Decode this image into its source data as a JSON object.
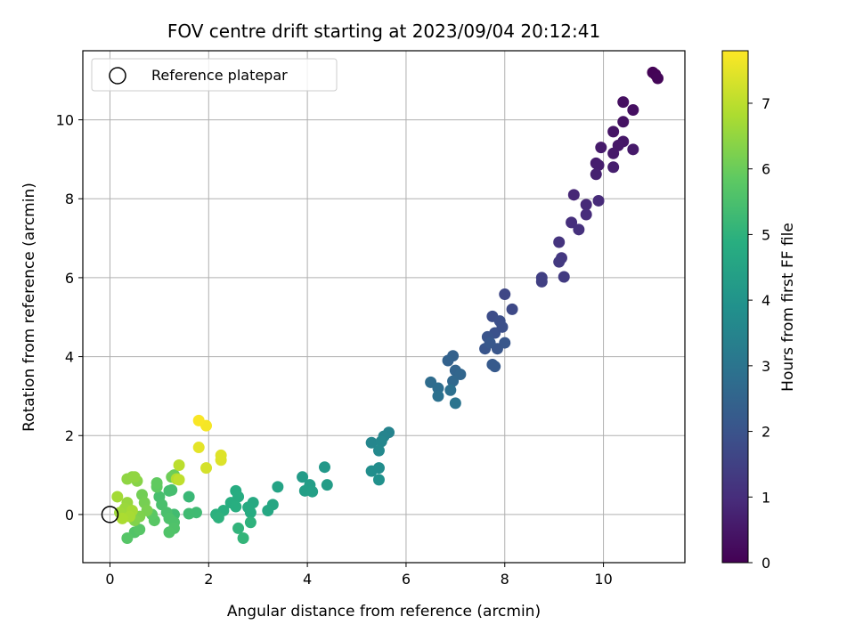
{
  "chart_data": {
    "type": "scatter",
    "title": "FOV centre drift starting at 2023/09/04 20:12:41",
    "xlabel": "Angular distance from reference (arcmin)",
    "ylabel": "Rotation from reference (arcmin)",
    "xlim": [
      -0.55,
      11.65
    ],
    "ylim": [
      -1.22,
      11.75
    ],
    "xticks": [
      0,
      2,
      4,
      6,
      8,
      10
    ],
    "yticks": [
      0,
      2,
      4,
      6,
      8,
      10
    ],
    "grid": true,
    "legend": {
      "position": "top-left",
      "entries": [
        {
          "label": "Reference platepar",
          "marker": "open-circle"
        }
      ]
    },
    "reference_point": {
      "x": 0,
      "y": 0
    },
    "colorbar": {
      "label": "Hours from first FF file",
      "colormap": "viridis",
      "min": 0,
      "max": 7.8,
      "ticks": [
        0,
        1,
        2,
        3,
        4,
        5,
        6,
        7
      ]
    },
    "points": [
      {
        "x": 11.0,
        "y": 11.2,
        "t": 0.05
      },
      {
        "x": 11.05,
        "y": 11.15,
        "t": 0.07
      },
      {
        "x": 11.1,
        "y": 11.05,
        "t": 0.1
      },
      {
        "x": 10.4,
        "y": 10.45,
        "t": 0.3
      },
      {
        "x": 10.6,
        "y": 10.25,
        "t": 0.32
      },
      {
        "x": 10.4,
        "y": 9.95,
        "t": 0.38
      },
      {
        "x": 10.2,
        "y": 9.7,
        "t": 0.42
      },
      {
        "x": 10.4,
        "y": 9.45,
        "t": 0.47
      },
      {
        "x": 10.3,
        "y": 9.35,
        "t": 0.5
      },
      {
        "x": 10.2,
        "y": 9.15,
        "t": 0.53
      },
      {
        "x": 10.6,
        "y": 9.25,
        "t": 0.55
      },
      {
        "x": 9.95,
        "y": 9.3,
        "t": 0.57
      },
      {
        "x": 9.85,
        "y": 8.9,
        "t": 0.62
      },
      {
        "x": 9.9,
        "y": 8.85,
        "t": 0.64
      },
      {
        "x": 10.2,
        "y": 8.8,
        "t": 0.66
      },
      {
        "x": 9.85,
        "y": 8.62,
        "t": 0.7
      },
      {
        "x": 9.4,
        "y": 8.1,
        "t": 0.85
      },
      {
        "x": 9.65,
        "y": 7.85,
        "t": 0.9
      },
      {
        "x": 9.9,
        "y": 7.95,
        "t": 0.92
      },
      {
        "x": 9.65,
        "y": 7.6,
        "t": 0.97
      },
      {
        "x": 9.35,
        "y": 7.4,
        "t": 1.02
      },
      {
        "x": 9.5,
        "y": 7.22,
        "t": 1.07
      },
      {
        "x": 9.1,
        "y": 6.9,
        "t": 1.15
      },
      {
        "x": 9.15,
        "y": 6.5,
        "t": 1.25
      },
      {
        "x": 9.1,
        "y": 6.4,
        "t": 1.28
      },
      {
        "x": 9.2,
        "y": 6.02,
        "t": 1.35
      },
      {
        "x": 8.75,
        "y": 6.0,
        "t": 1.45
      },
      {
        "x": 8.75,
        "y": 5.9,
        "t": 1.48
      },
      {
        "x": 8.0,
        "y": 5.58,
        "t": 1.65
      },
      {
        "x": 8.15,
        "y": 5.2,
        "t": 1.72
      },
      {
        "x": 7.75,
        "y": 5.02,
        "t": 1.82
      },
      {
        "x": 7.9,
        "y": 4.9,
        "t": 1.86
      },
      {
        "x": 7.8,
        "y": 4.6,
        "t": 1.92
      },
      {
        "x": 7.95,
        "y": 4.75,
        "t": 1.9
      },
      {
        "x": 7.65,
        "y": 4.5,
        "t": 2.0
      },
      {
        "x": 7.6,
        "y": 4.2,
        "t": 2.05
      },
      {
        "x": 7.85,
        "y": 4.2,
        "t": 2.08
      },
      {
        "x": 8.0,
        "y": 4.35,
        "t": 2.1
      },
      {
        "x": 7.7,
        "y": 4.35,
        "t": 2.12
      },
      {
        "x": 7.75,
        "y": 3.8,
        "t": 2.18
      },
      {
        "x": 7.8,
        "y": 3.75,
        "t": 2.2
      },
      {
        "x": 6.95,
        "y": 4.02,
        "t": 2.4
      },
      {
        "x": 6.85,
        "y": 3.9,
        "t": 2.45
      },
      {
        "x": 7.0,
        "y": 3.65,
        "t": 2.5
      },
      {
        "x": 7.1,
        "y": 3.55,
        "t": 2.55
      },
      {
        "x": 6.95,
        "y": 3.38,
        "t": 2.62
      },
      {
        "x": 6.5,
        "y": 3.35,
        "t": 2.75
      },
      {
        "x": 6.65,
        "y": 3.2,
        "t": 2.8
      },
      {
        "x": 6.9,
        "y": 3.15,
        "t": 2.85
      },
      {
        "x": 6.65,
        "y": 3.0,
        "t": 2.9
      },
      {
        "x": 7.0,
        "y": 2.82,
        "t": 3.0
      },
      {
        "x": 5.65,
        "y": 2.08,
        "t": 3.45
      },
      {
        "x": 5.55,
        "y": 1.98,
        "t": 3.5
      },
      {
        "x": 5.3,
        "y": 1.82,
        "t": 3.55
      },
      {
        "x": 5.5,
        "y": 1.85,
        "t": 3.57
      },
      {
        "x": 5.45,
        "y": 1.62,
        "t": 3.65
      },
      {
        "x": 5.3,
        "y": 1.1,
        "t": 3.8
      },
      {
        "x": 5.45,
        "y": 1.18,
        "t": 3.78
      },
      {
        "x": 5.45,
        "y": 0.88,
        "t": 3.9
      },
      {
        "x": 4.35,
        "y": 1.2,
        "t": 4.15
      },
      {
        "x": 3.9,
        "y": 0.95,
        "t": 4.25
      },
      {
        "x": 4.05,
        "y": 0.75,
        "t": 4.3
      },
      {
        "x": 4.4,
        "y": 0.75,
        "t": 4.28
      },
      {
        "x": 3.95,
        "y": 0.6,
        "t": 4.35
      },
      {
        "x": 4.1,
        "y": 0.58,
        "t": 4.38
      },
      {
        "x": 3.4,
        "y": 0.7,
        "t": 4.5
      },
      {
        "x": 3.3,
        "y": 0.25,
        "t": 4.6
      },
      {
        "x": 3.2,
        "y": 0.1,
        "t": 4.65
      },
      {
        "x": 2.9,
        "y": 0.3,
        "t": 4.7
      },
      {
        "x": 2.8,
        "y": 0.18,
        "t": 4.75
      },
      {
        "x": 2.85,
        "y": 0.05,
        "t": 4.78
      },
      {
        "x": 2.55,
        "y": 0.6,
        "t": 4.8
      },
      {
        "x": 2.6,
        "y": 0.45,
        "t": 4.82
      },
      {
        "x": 2.45,
        "y": 0.3,
        "t": 4.85
      },
      {
        "x": 2.55,
        "y": 0.2,
        "t": 4.88
      },
      {
        "x": 2.3,
        "y": 0.1,
        "t": 4.9
      },
      {
        "x": 2.15,
        "y": 0.0,
        "t": 4.95
      },
      {
        "x": 2.2,
        "y": -0.08,
        "t": 4.98
      },
      {
        "x": 2.85,
        "y": -0.2,
        "t": 5.0
      },
      {
        "x": 2.6,
        "y": -0.35,
        "t": 5.05
      },
      {
        "x": 2.7,
        "y": -0.6,
        "t": 5.1
      },
      {
        "x": 1.6,
        "y": 0.45,
        "t": 5.2
      },
      {
        "x": 1.75,
        "y": 0.05,
        "t": 5.3
      },
      {
        "x": 1.6,
        "y": 0.02,
        "t": 5.32
      },
      {
        "x": 1.3,
        "y": 0.0,
        "t": 5.35
      },
      {
        "x": 1.2,
        "y": 0.6,
        "t": 5.4
      },
      {
        "x": 1.25,
        "y": 0.62,
        "t": 5.42
      },
      {
        "x": 1.0,
        "y": 0.45,
        "t": 5.45
      },
      {
        "x": 1.05,
        "y": 0.25,
        "t": 5.48
      },
      {
        "x": 1.15,
        "y": 0.05,
        "t": 5.5
      },
      {
        "x": 1.2,
        "y": -0.1,
        "t": 5.55
      },
      {
        "x": 1.3,
        "y": -0.2,
        "t": 5.57
      },
      {
        "x": 1.3,
        "y": -0.35,
        "t": 5.6
      },
      {
        "x": 1.2,
        "y": -0.45,
        "t": 5.62
      },
      {
        "x": 0.5,
        "y": -0.45,
        "t": 5.65
      },
      {
        "x": 0.35,
        "y": -0.6,
        "t": 5.7
      },
      {
        "x": 0.6,
        "y": -0.38,
        "t": 5.72
      },
      {
        "x": 0.9,
        "y": -0.15,
        "t": 5.75
      },
      {
        "x": 0.85,
        "y": 0.0,
        "t": 5.8
      },
      {
        "x": 0.95,
        "y": 0.7,
        "t": 5.85
      },
      {
        "x": 0.95,
        "y": 0.8,
        "t": 5.88
      },
      {
        "x": 1.3,
        "y": 1.0,
        "t": 6.0
      },
      {
        "x": 1.25,
        "y": 0.95,
        "t": 6.05
      },
      {
        "x": 0.65,
        "y": 0.5,
        "t": 6.1
      },
      {
        "x": 0.7,
        "y": 0.3,
        "t": 6.15
      },
      {
        "x": 0.75,
        "y": 0.1,
        "t": 6.2
      },
      {
        "x": 0.6,
        "y": -0.05,
        "t": 6.25
      },
      {
        "x": 0.5,
        "y": -0.15,
        "t": 6.3
      },
      {
        "x": 0.55,
        "y": 0.85,
        "t": 6.35
      },
      {
        "x": 0.45,
        "y": 0.95,
        "t": 6.4
      },
      {
        "x": 0.35,
        "y": 0.9,
        "t": 6.45
      },
      {
        "x": 0.5,
        "y": 0.95,
        "t": 6.48
      },
      {
        "x": 0.35,
        "y": 0.3,
        "t": 6.55
      },
      {
        "x": 0.3,
        "y": 0.15,
        "t": 6.6
      },
      {
        "x": 0.2,
        "y": 0.05,
        "t": 6.65
      },
      {
        "x": 0.15,
        "y": 0.45,
        "t": 6.7
      },
      {
        "x": 0.45,
        "y": 0.1,
        "t": 6.72
      },
      {
        "x": 0.4,
        "y": -0.05,
        "t": 6.75
      },
      {
        "x": 0.25,
        "y": -0.1,
        "t": 6.8
      },
      {
        "x": 1.35,
        "y": 0.9,
        "t": 6.9
      },
      {
        "x": 1.4,
        "y": 1.25,
        "t": 7.0
      },
      {
        "x": 1.4,
        "y": 0.88,
        "t": 7.05
      },
      {
        "x": 1.95,
        "y": 1.18,
        "t": 7.3
      },
      {
        "x": 2.25,
        "y": 1.38,
        "t": 7.4
      },
      {
        "x": 2.25,
        "y": 1.5,
        "t": 7.42
      },
      {
        "x": 1.8,
        "y": 1.7,
        "t": 7.5
      },
      {
        "x": 1.95,
        "y": 2.25,
        "t": 7.7
      },
      {
        "x": 1.8,
        "y": 2.38,
        "t": 7.75
      }
    ]
  }
}
